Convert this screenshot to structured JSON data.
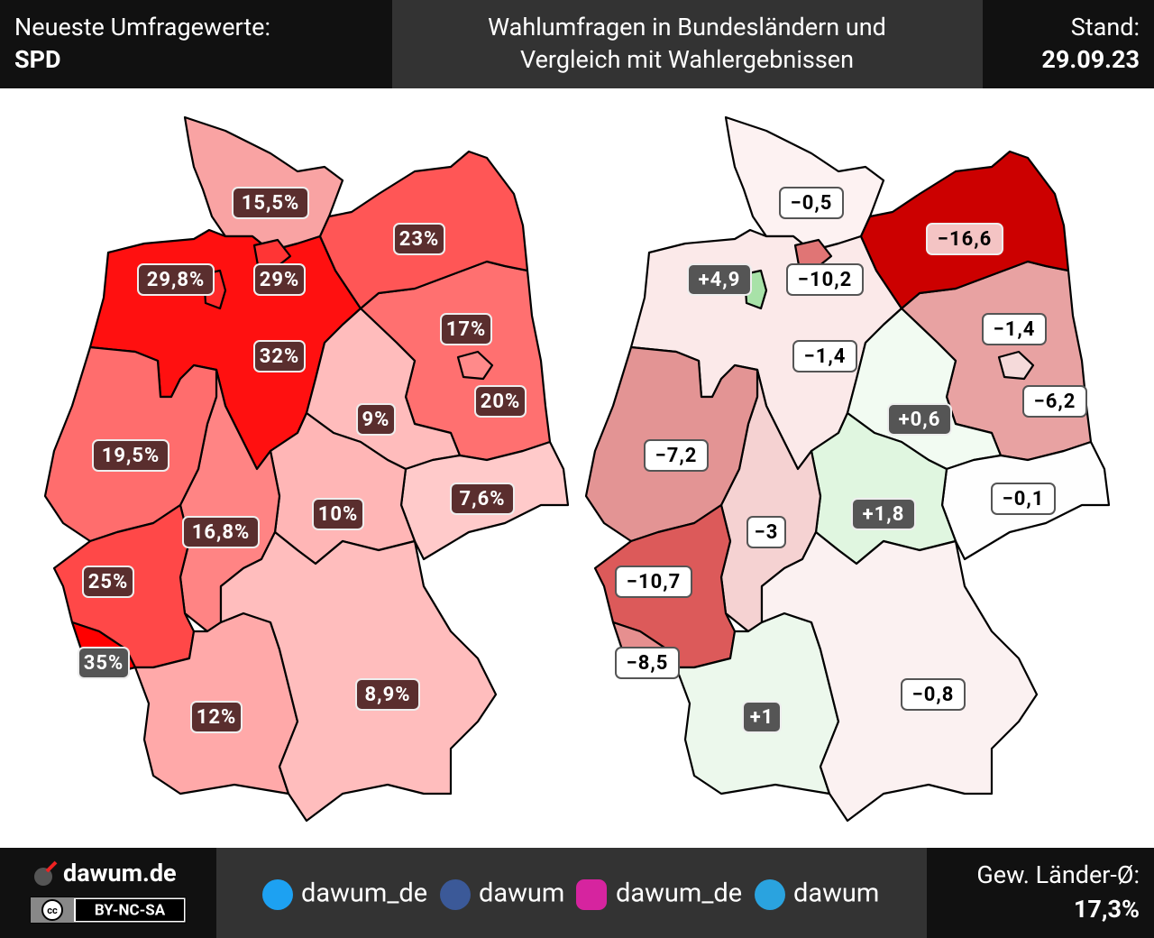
{
  "header": {
    "left_title": "Neueste Umfragewerte:",
    "left_subtitle": "SPD",
    "title_lines": [
      "Wahlumfragen in Bundesländern und",
      "Vergleich mit Wahlergebnissen"
    ],
    "stand_label": "Stand:",
    "date": "29.09.23"
  },
  "maps": {
    "survey": {
      "labels": [
        "15,5%",
        "29%",
        "29,8%",
        "32%",
        "23%",
        "20%",
        "17%",
        "9%",
        "7,6%",
        "10%",
        "16,8%",
        "19,5%",
        "25%",
        "35%",
        "12%",
        "8,9%"
      ]
    },
    "change": {
      "labels": [
        "−0,5",
        "−10,2",
        "+4,9",
        "−1,4",
        "−16,6",
        "−6,2",
        "−1,4",
        "+0,6",
        "−0,1",
        "+1,8",
        "−3",
        "−7,2",
        "−10,7",
        "−8,5",
        "+1",
        "−0,8"
      ]
    }
  },
  "footer": {
    "site": "dawum.de",
    "license_icon": "cc",
    "license": "BY-NC-SA",
    "socials": [
      "dawum_de",
      "dawum",
      "dawum_de",
      "dawum"
    ],
    "avg_label": "Gew. Länder-Ø:",
    "avg_value": "17,3%"
  }
}
